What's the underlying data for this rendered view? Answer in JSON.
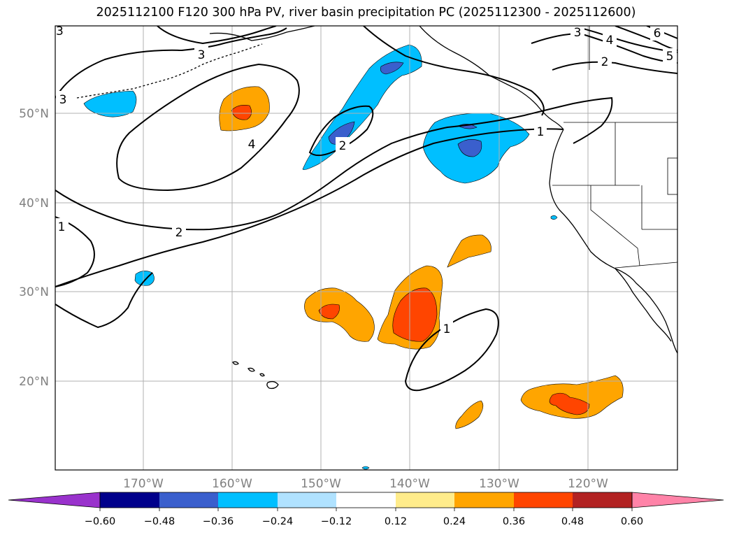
{
  "title": "2025112100 F120 300 hPa PV, river basin precipitation PC (2025112300 - 2025112600)",
  "lon_labels": [
    "170°W",
    "160°W",
    "150°W",
    "140°W",
    "130°W",
    "120°W"
  ],
  "lat_labels": [
    "50°N",
    "40°N",
    "30°N",
    "20°N"
  ],
  "contour_labels": [
    "3",
    "3",
    "4",
    "2",
    "2",
    "1",
    "1",
    "1",
    "3",
    "4",
    "5",
    "6",
    "2",
    "3"
  ],
  "colorbar": {
    "tick_labels": [
      "−0.60",
      "−0.48",
      "−0.36",
      "−0.24",
      "−0.12",
      "0.12",
      "0.24",
      "0.36",
      "0.48",
      "0.60"
    ],
    "colors": [
      "#9932cc",
      "#00008b",
      "#3a5fcd",
      "#00bfff",
      "#b0e2ff",
      "#ffffff",
      "#ffec8b",
      "#ffa500",
      "#ff4500",
      "#b22222",
      "#ff83a8"
    ]
  },
  "shading_colors": {
    "neg1": "#00bfff",
    "neg2": "#3a5fcd",
    "pos1": "#ffa500",
    "pos2": "#ff4500"
  }
}
